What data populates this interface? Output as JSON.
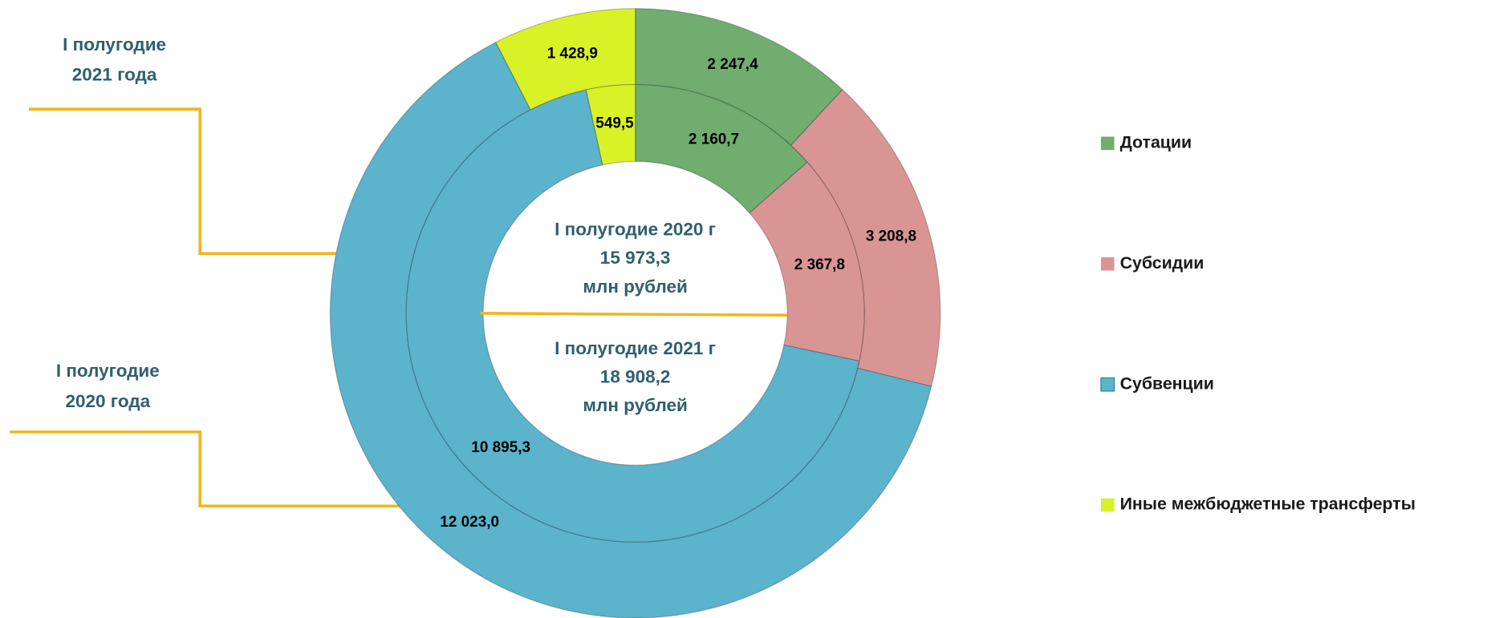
{
  "chart_data": {
    "type": "donut",
    "categories": [
      "Дотации",
      "Субсидии",
      "Субвенции",
      "Иные межбюджетные трансферты"
    ],
    "colors": [
      "#70ad6f",
      "#d99594",
      "#5bb3cc",
      "#d9f227"
    ],
    "series": [
      {
        "values": [
          2247.4,
          3208.8,
          12023.0,
          1428.9
        ],
        "value_labels": [
          "2 247,4",
          "3 208,8",
          "12 023,0",
          "1 428,9"
        ]
      },
      {
        "values": [
          2160.7,
          2367.8,
          10895.3,
          549.5
        ],
        "value_labels": [
          "2 160,7",
          "2 367,8",
          "10 895,3",
          "549,5"
        ]
      }
    ],
    "center_top": [
      "I полугодие 2020 г",
      "15 973,3",
      "млн рублей"
    ],
    "center_bottom": [
      "I полугодие 2021 г",
      "18 908,2",
      "млн рублей"
    ],
    "annotations": [
      {
        "lines": [
          "I полугодие",
          "2021 года"
        ]
      },
      {
        "lines": [
          "I полугодие",
          "2020 года"
        ]
      }
    ],
    "legend": "right"
  }
}
